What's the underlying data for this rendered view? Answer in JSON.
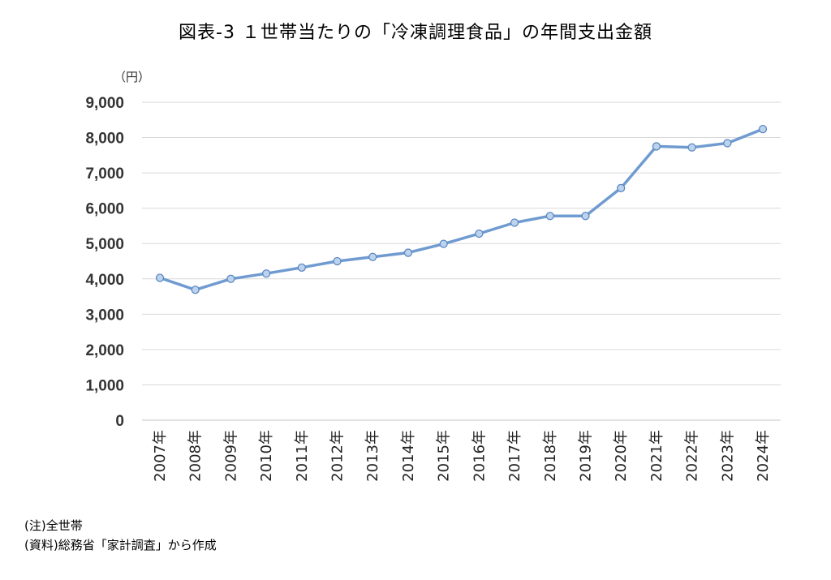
{
  "title": "図表-3 １世帯当たりの「冷凍調理食品」の年間支出金額",
  "notes": [
    "(注)全世帯",
    "(資料)総務省「家計調査」から作成"
  ],
  "colors": {
    "line": "#6f9bd1",
    "marker_fill": "#bcd3ee",
    "marker_stroke": "#5d88c0",
    "grid": "#d9d9d9"
  },
  "chart_data": {
    "type": "line",
    "ylabel": "（円）",
    "ylim": [
      0,
      9000
    ],
    "yticks": [
      0,
      1000,
      2000,
      3000,
      4000,
      5000,
      6000,
      7000,
      8000,
      9000
    ],
    "ytick_labels": [
      "0",
      "1,000",
      "2,000",
      "3,000",
      "4,000",
      "5,000",
      "6,000",
      "7,000",
      "8,000",
      "9,000"
    ],
    "grid": true,
    "categories": [
      "2007年",
      "2008年",
      "2009年",
      "2010年",
      "2011年",
      "2012年",
      "2013年",
      "2014年",
      "2015年",
      "2016年",
      "2017年",
      "2018年",
      "2019年",
      "2020年",
      "2021年",
      "2022年",
      "2023年",
      "2024年"
    ],
    "series": [
      {
        "values": [
          4030,
          3690,
          4000,
          4150,
          4320,
          4500,
          4620,
          4740,
          4990,
          5280,
          5590,
          5780,
          5780,
          6570,
          7750,
          7720,
          7840,
          8240
        ]
      }
    ]
  }
}
